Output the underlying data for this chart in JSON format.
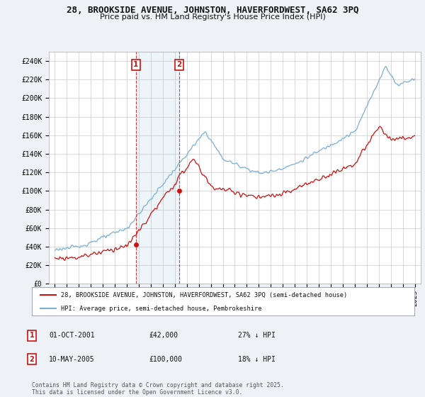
{
  "title_line1": "28, BROOKSIDE AVENUE, JOHNSTON, HAVERFORDWEST, SA62 3PQ",
  "title_line2": "Price paid vs. HM Land Registry's House Price Index (HPI)",
  "ylabel_ticks": [
    "£0",
    "£20K",
    "£40K",
    "£60K",
    "£80K",
    "£100K",
    "£120K",
    "£140K",
    "£160K",
    "£180K",
    "£200K",
    "£220K",
    "£240K"
  ],
  "ytick_values": [
    0,
    20000,
    40000,
    60000,
    80000,
    100000,
    120000,
    140000,
    160000,
    180000,
    200000,
    220000,
    240000
  ],
  "ylim": [
    0,
    250000
  ],
  "xlim_start": 1994.5,
  "xlim_end": 2025.5,
  "hpi_color": "#7aadd4",
  "price_color": "#cc1111",
  "background_color": "#eef2f7",
  "plot_bg_color": "#ffffff",
  "grid_color": "#cccccc",
  "sale1_x": 2001.75,
  "sale1_y": 42000,
  "sale2_x": 2005.36,
  "sale2_y": 100000,
  "legend_line1": "28, BROOKSIDE AVENUE, JOHNSTON, HAVERFORDWEST, SA62 3PQ (semi-detached house)",
  "legend_line2": "HPI: Average price, semi-detached house, Pembrokeshire",
  "sale1_date": "01-OCT-2001",
  "sale1_price": "£42,000",
  "sale1_hpi": "27% ↓ HPI",
  "sale2_date": "10-MAY-2005",
  "sale2_price": "£100,000",
  "sale2_hpi": "18% ↓ HPI",
  "footer_text": "Contains HM Land Registry data © Crown copyright and database right 2025.\nThis data is licensed under the Open Government Licence v3.0.",
  "xtick_years": [
    1995,
    1996,
    1997,
    1998,
    1999,
    2000,
    2001,
    2002,
    2003,
    2004,
    2005,
    2006,
    2007,
    2008,
    2009,
    2010,
    2011,
    2012,
    2013,
    2014,
    2015,
    2016,
    2017,
    2018,
    2019,
    2020,
    2021,
    2022,
    2023,
    2024,
    2025
  ]
}
